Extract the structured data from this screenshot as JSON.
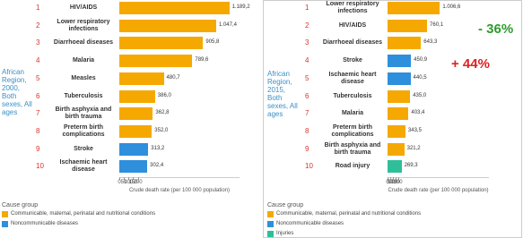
{
  "chart_data": [
    {
      "type": "bar",
      "orientation": "horizontal",
      "region_label": "African Region, 2000, Both sexes, All ages",
      "ranks": [
        "1",
        "2",
        "3",
        "4",
        "5",
        "6",
        "7",
        "8",
        "9",
        "10"
      ],
      "categories": [
        "HIV/AIDS",
        "Lower respiratory infections",
        "Diarrhoeal diseases",
        "Malaria",
        "Measles",
        "Tuberculosis",
        "Birth asphyxia and birth trauma",
        "Preterm birth complications",
        "Stroke",
        "Ischaemic heart disease"
      ],
      "values": [
        1189.2,
        1047.4,
        905.8,
        789.6,
        480.7,
        386.0,
        362.8,
        352.0,
        313.2,
        302.4
      ],
      "value_labels": [
        "1.189,2",
        "1.047,4",
        "905,8",
        "789,6",
        "480,7",
        "386,0",
        "362,8",
        "352,0",
        "313,2",
        "302,4"
      ],
      "colors": [
        "#f5a800",
        "#f5a800",
        "#f5a800",
        "#f5a800",
        "#f5a800",
        "#f5a800",
        "#f5a800",
        "#f5a800",
        "#2e8fdc",
        "#2e8fdc"
      ],
      "xlim": [
        0,
        1300
      ],
      "xticks": [
        0,
        50,
        100,
        150,
        200
      ],
      "xlabel": "Crude death rate (per 100 000 population)",
      "legend_title": "Cause group",
      "legend": [
        {
          "name": "Communicable, maternal, perinatal and nutritional conditions",
          "color": "#f5a800"
        },
        {
          "name": "Noncommunicable diseases",
          "color": "#2e8fdc"
        }
      ],
      "annotations": []
    },
    {
      "type": "bar",
      "orientation": "horizontal",
      "region_label": "African Region, 2015, Both sexes, All ages",
      "ranks": [
        "1",
        "2",
        "3",
        "4",
        "5",
        "6",
        "7",
        "8",
        "9",
        "10"
      ],
      "categories": [
        "Lower respiratory infections",
        "HIV/AIDS",
        "Diarrhoeal diseases",
        "Stroke",
        "Ischaemic heart disease",
        "Tuberculosis",
        "Malaria",
        "Preterm birth complications",
        "Birth asphyxia and birth trauma",
        "Road injury"
      ],
      "values": [
        1006.6,
        760.1,
        643.3,
        450.9,
        440.5,
        435.0,
        403.4,
        343.5,
        321.2,
        269.3
      ],
      "value_labels": [
        "1.006,6",
        "760,1",
        "643,3",
        "450,9",
        "440,5",
        "435,0",
        "403,4",
        "343,5",
        "321,2",
        "269,3"
      ],
      "colors": [
        "#f5a800",
        "#f5a800",
        "#f5a800",
        "#2e8fdc",
        "#2e8fdc",
        "#f5a800",
        "#f5a800",
        "#f5a800",
        "#f5a800",
        "#2ebf9a"
      ],
      "xlim": [
        0,
        1950
      ],
      "xticks": [
        0,
        50,
        100,
        150,
        200
      ],
      "xlabel": "Crude death rate (per 100 000 population)",
      "legend_title": "Cause group",
      "legend": [
        {
          "name": "Communicable, maternal, perinatal and nutritional conditions",
          "color": "#f5a800"
        },
        {
          "name": "Noncommunicable diseases",
          "color": "#2e8fdc"
        },
        {
          "name": "Injuries",
          "color": "#2ebf9a"
        }
      ],
      "annotations": [
        {
          "text": "- 36%",
          "color": "#2e9a2e"
        },
        {
          "text": "+ 44%",
          "color": "#e02020"
        }
      ]
    }
  ]
}
